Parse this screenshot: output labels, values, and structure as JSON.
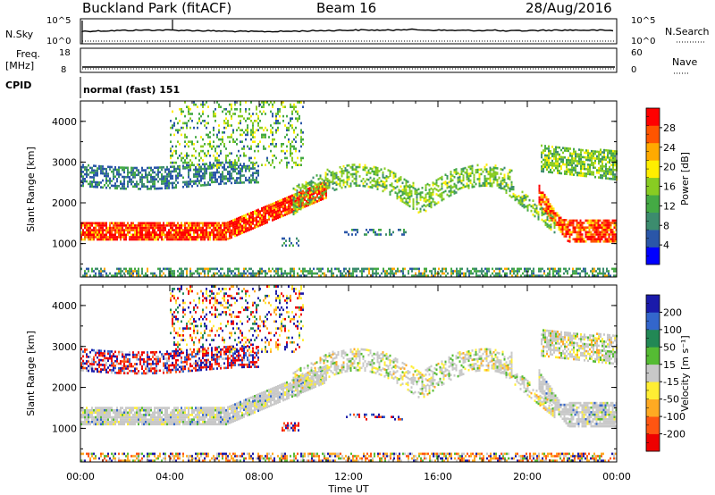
{
  "header": {
    "station": "Buckland Park (fitACF)",
    "beam": "Beam 16",
    "date": "28/Aug/2016"
  },
  "summary_panels": {
    "nsky_label": "N.Sky",
    "nsky_ticks": [
      "10^5",
      "10^0"
    ],
    "nsearch_label": "N.Search",
    "nsearch_ticks": [
      "10^5",
      "10^0"
    ],
    "freq_label_1": "Freq.",
    "freq_label_2": "[MHz]",
    "freq_ticks": [
      "18",
      "8"
    ],
    "nave_label": "Nave",
    "nave_ticks": [
      "60",
      "0"
    ],
    "cpid_label": "CPID",
    "cpid_text": "normal (fast) 151"
  },
  "chart_data": [
    {
      "type": "heatmap",
      "quantity": "Power",
      "ylabel": "Slant Range [km]",
      "xlabel": "Time UT",
      "ylim": [
        180,
        4500
      ],
      "y_ticks": [
        "1000",
        "2000",
        "3000",
        "4000"
      ],
      "x_ticks": [
        "00:00",
        "04:00",
        "08:00",
        "12:00",
        "16:00",
        "20:00",
        "00:00"
      ],
      "xlim_hours": [
        0,
        24
      ],
      "colorbar_label": "Power [dB]",
      "colorbar_ticks": [
        "4",
        "8",
        "12",
        "16",
        "20",
        "24",
        "28"
      ],
      "colorbar_colors": [
        "#0000ff",
        "#2a56a8",
        "#3c8c6e",
        "#44aa44",
        "#88cc22",
        "#ffee00",
        "#ffaa00",
        "#ff5500",
        "#ff0000"
      ],
      "echo_regions": [
        {
          "name": "strong-band",
          "t0": 0,
          "t1": 9.5,
          "r0": 1150,
          "r1": 1550,
          "level": 26
        },
        {
          "name": "rising-band",
          "t0": 6.5,
          "t1": 11.5,
          "r0": 1500,
          "r1": 2500,
          "level": 22
        },
        {
          "name": "upper-band",
          "t0": 0,
          "t1": 6.5,
          "r0": 2500,
          "r1": 3000,
          "level": 8
        },
        {
          "name": "late-descending-band",
          "t0": 20.5,
          "t1": 24,
          "r0": 1100,
          "r1": 1700,
          "level": 24
        },
        {
          "name": "late-upper-band",
          "t0": 20.5,
          "t1": 24,
          "r0": 2600,
          "r1": 3300,
          "level": 14
        },
        {
          "name": "midday-arc",
          "t0": 10,
          "t1": 19,
          "r0": 1700,
          "r1": 2900,
          "level": 14
        },
        {
          "name": "ground-scatter-floor",
          "t0": 0,
          "t1": 24,
          "r0": 180,
          "r1": 450,
          "level": 10
        }
      ]
    },
    {
      "type": "heatmap",
      "quantity": "Velocity",
      "ylabel": "Slant Range [km]",
      "xlabel": "Time UT",
      "ylim": [
        180,
        4500
      ],
      "y_ticks": [
        "1000",
        "2000",
        "3000",
        "4000"
      ],
      "x_ticks": [
        "00:00",
        "04:00",
        "08:00",
        "12:00",
        "16:00",
        "20:00",
        "00:00"
      ],
      "xlim_hours": [
        0,
        24
      ],
      "colorbar_label": "Velocity [m s⁻¹]",
      "colorbar_ticks": [
        "200",
        "100",
        "50",
        "15",
        "-15",
        "-50",
        "-100",
        "-200"
      ],
      "colorbar_colors": [
        "#1a1aaa",
        "#3366cc",
        "#228855",
        "#55bb33",
        "#c8c8c8",
        "#ffee33",
        "#ffaa22",
        "#ff5511",
        "#ee0000"
      ]
    }
  ]
}
